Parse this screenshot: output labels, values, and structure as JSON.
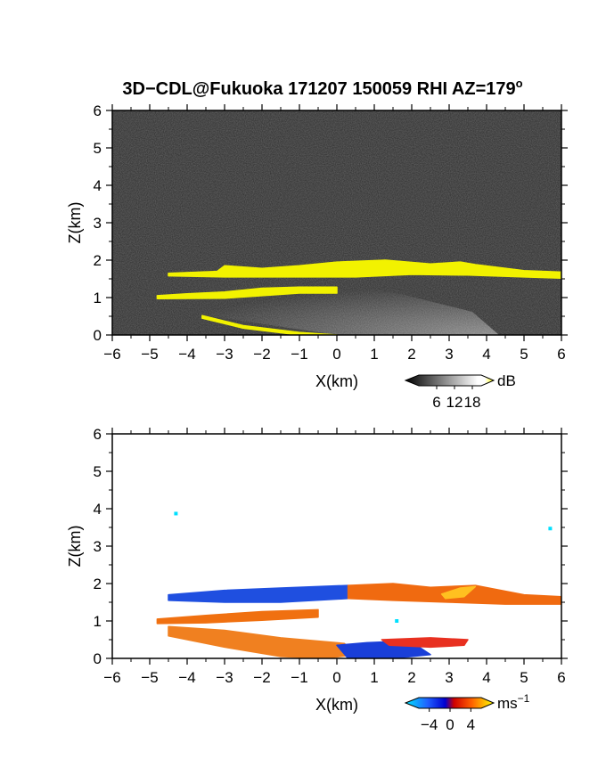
{
  "figure": {
    "title": "3D−CDL@Fukuoka 171207 150059 RHI AZ=179",
    "title_sup": "o"
  },
  "chart_data": [
    {
      "type": "heatmap",
      "panel": "reflectivity",
      "xlabel": "X(km)",
      "ylabel": "Z(km)",
      "xlim": [
        -6,
        6
      ],
      "ylim": [
        0,
        6
      ],
      "xticks": [
        "−6",
        "−5",
        "−4",
        "−3",
        "−2",
        "−1",
        "0",
        "1",
        "2",
        "3",
        "4",
        "5",
        "6"
      ],
      "yticks": [
        "0",
        "1",
        "2",
        "3",
        "4",
        "5",
        "6"
      ],
      "background_color": "#2b2b2b",
      "colorbar": {
        "unit": "dB",
        "ticks": [
          "6",
          "12",
          "18"
        ],
        "range": [
          0,
          21
        ],
        "colors": [
          "#000000",
          "#ffffff",
          "#ffff00"
        ]
      },
      "features": [
        {
          "name": "upper cloud layer",
          "color": "#f2f200",
          "top": [
            [
              -4.5,
              1.65
            ],
            [
              -3.2,
              1.7
            ],
            [
              -3.0,
              1.85
            ],
            [
              -2.0,
              1.78
            ],
            [
              -1.0,
              1.85
            ],
            [
              0.0,
              1.95
            ],
            [
              1.3,
              2.0
            ],
            [
              2.5,
              1.9
            ],
            [
              3.3,
              1.95
            ],
            [
              3.7,
              1.88
            ],
            [
              5.0,
              1.72
            ],
            [
              6.0,
              1.68
            ]
          ],
          "bottom": [
            [
              6.0,
              1.52
            ],
            [
              5.0,
              1.55
            ],
            [
              3.5,
              1.6
            ],
            [
              2.0,
              1.62
            ],
            [
              0.5,
              1.55
            ],
            [
              -1.0,
              1.55
            ],
            [
              -3.0,
              1.55
            ],
            [
              -4.5,
              1.58
            ]
          ]
        },
        {
          "name": "lower cloud layer",
          "color": "#f2f200",
          "top": [
            [
              -4.8,
              1.05
            ],
            [
              -4.0,
              1.1
            ],
            [
              -3.0,
              1.15
            ],
            [
              -2.0,
              1.25
            ],
            [
              -1.0,
              1.28
            ],
            [
              0.0,
              1.28
            ]
          ],
          "bottom": [
            [
              0.0,
              1.12
            ],
            [
              -1.0,
              1.12
            ],
            [
              -2.0,
              1.05
            ],
            [
              -3.0,
              0.98
            ],
            [
              -4.8,
              0.97
            ]
          ]
        },
        {
          "name": "near-ground echo",
          "color": "#f2f200",
          "top": [
            [
              -3.6,
              0.52
            ],
            [
              -2.5,
              0.25
            ],
            [
              -1.0,
              0.07
            ],
            [
              0.0,
              0.0
            ]
          ],
          "bottom": [
            [
              0.0,
              0.0
            ],
            [
              -1.0,
              0.0
            ],
            [
              -2.5,
              0.18
            ],
            [
              -3.6,
              0.45
            ]
          ]
        }
      ]
    },
    {
      "type": "heatmap",
      "panel": "doppler velocity",
      "xlabel": "X(km)",
      "ylabel": "Z(km)",
      "xlim": [
        -6,
        6
      ],
      "ylim": [
        0,
        6
      ],
      "xticks": [
        "−6",
        "−5",
        "−4",
        "−3",
        "−2",
        "−1",
        "0",
        "1",
        "2",
        "3",
        "4",
        "5",
        "6"
      ],
      "yticks": [
        "0",
        "1",
        "2",
        "3",
        "4",
        "5",
        "6"
      ],
      "background_color": "#ffffff",
      "colorbar": {
        "unit": "ms",
        "unit_sup": "−1",
        "ticks": [
          "−4",
          "0",
          "4"
        ],
        "range": [
          -6,
          6
        ],
        "colors": [
          "#00e5ff",
          "#0000ff",
          "#ff0000",
          "#ffff00"
        ]
      },
      "features": [
        {
          "name": "upper layer negative velocity",
          "color": "#1f4fe0",
          "top": [
            [
              -4.5,
              1.7
            ],
            [
              -3.0,
              1.82
            ],
            [
              -1.5,
              1.88
            ],
            [
              0.3,
              1.95
            ],
            [
              0.3,
              1.6
            ],
            [
              -1.5,
              1.5
            ],
            [
              -3.0,
              1.5
            ],
            [
              -4.5,
              1.55
            ]
          ]
        },
        {
          "name": "upper layer positive velocity",
          "color": "#f06a10",
          "top": [
            [
              0.3,
              1.95
            ],
            [
              1.5,
              2.0
            ],
            [
              2.5,
              1.9
            ],
            [
              3.7,
              1.95
            ],
            [
              5.0,
              1.7
            ],
            [
              6.0,
              1.65
            ],
            [
              6.0,
              1.45
            ],
            [
              4.5,
              1.45
            ],
            [
              3.0,
              1.5
            ],
            [
              1.5,
              1.55
            ],
            [
              0.3,
              1.6
            ]
          ]
        },
        {
          "name": "upper layer light positive",
          "color": "#ffc020",
          "top": [
            [
              2.8,
              1.72
            ],
            [
              3.3,
              1.88
            ],
            [
              3.7,
              1.92
            ],
            [
              3.4,
              1.65
            ],
            [
              2.9,
              1.6
            ]
          ]
        },
        {
          "name": "lower layer",
          "color": "#f07010",
          "top": [
            [
              -4.8,
              1.05
            ],
            [
              -3.5,
              1.15
            ],
            [
              -2.0,
              1.25
            ],
            [
              -0.5,
              1.3
            ],
            [
              -0.5,
              1.1
            ],
            [
              -2.0,
              1.02
            ],
            [
              -3.5,
              0.95
            ],
            [
              -4.8,
              0.93
            ]
          ]
        },
        {
          "name": "near-ground positive",
          "color": "#f08020",
          "top": [
            [
              -4.5,
              0.85
            ],
            [
              -3.0,
              0.75
            ],
            [
              -1.5,
              0.55
            ],
            [
              0.2,
              0.4
            ],
            [
              0.5,
              0.1
            ],
            [
              -0.3,
              0.0
            ],
            [
              -1.5,
              0.05
            ],
            [
              -3.0,
              0.3
            ],
            [
              -4.5,
              0.6
            ]
          ]
        },
        {
          "name": "near-ground negative",
          "color": "#1a3fd8",
          "top": [
            [
              0.0,
              0.35
            ],
            [
              0.8,
              0.42
            ],
            [
              1.5,
              0.45
            ],
            [
              2.2,
              0.3
            ],
            [
              2.5,
              0.1
            ],
            [
              1.5,
              0.0
            ],
            [
              0.3,
              0.0
            ]
          ]
        },
        {
          "name": "near-ground speckle",
          "color": "#e83020",
          "top": [
            [
              1.2,
              0.5
            ],
            [
              2.5,
              0.55
            ],
            [
              3.5,
              0.5
            ],
            [
              3.4,
              0.35
            ],
            [
              2.5,
              0.3
            ],
            [
              1.4,
              0.35
            ]
          ]
        }
      ],
      "isolated_points": [
        {
          "x": -4.3,
          "z": 3.87
        },
        {
          "x": 5.7,
          "z": 3.47
        },
        {
          "x": 1.6,
          "z": 1.0
        }
      ]
    }
  ]
}
